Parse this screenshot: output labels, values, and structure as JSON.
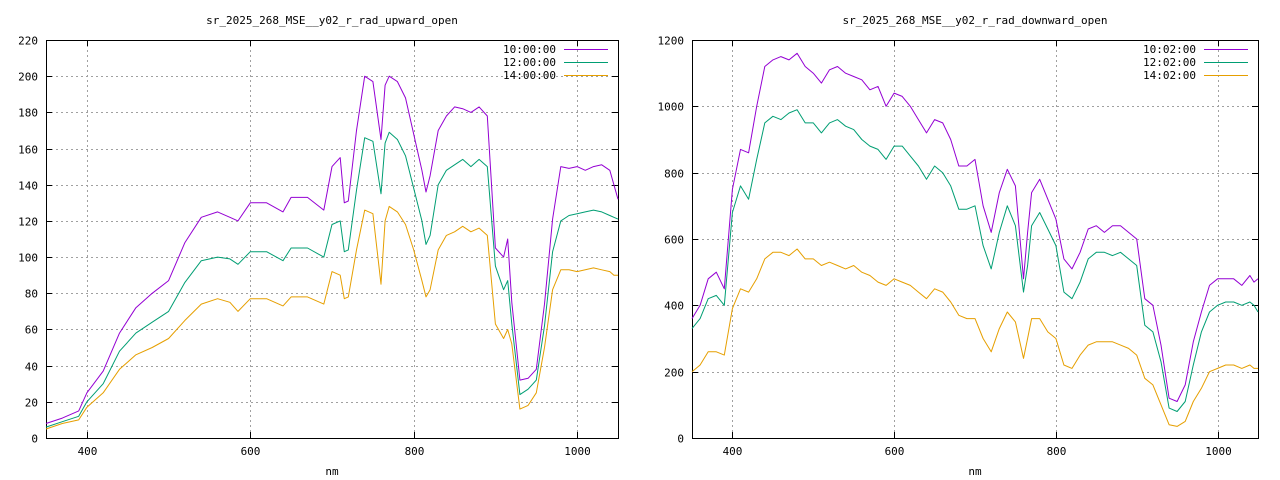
{
  "chart_data": [
    {
      "type": "line",
      "title": "sr_2025_268_MSE__y02_r_rad_upward_open",
      "xlabel": "nm",
      "ylabel": "",
      "xlim": [
        350,
        1050
      ],
      "ylim": [
        0,
        220
      ],
      "xticks": [
        400,
        600,
        800,
        1000
      ],
      "yticks": [
        0,
        20,
        40,
        60,
        80,
        100,
        120,
        140,
        160,
        180,
        200,
        220
      ],
      "grid": true,
      "legend_position": "top-right",
      "series": [
        {
          "name": "10:00:00",
          "color": "#9400d3",
          "x": [
            350,
            370,
            390,
            400,
            420,
            440,
            460,
            480,
            500,
            520,
            540,
            560,
            575,
            585,
            600,
            620,
            640,
            650,
            670,
            690,
            700,
            710,
            715,
            720,
            730,
            740,
            750,
            760,
            765,
            770,
            780,
            790,
            800,
            810,
            815,
            820,
            830,
            840,
            850,
            860,
            870,
            880,
            890,
            900,
            910,
            915,
            920,
            930,
            940,
            950,
            960,
            970,
            980,
            990,
            1000,
            1010,
            1020,
            1030,
            1040,
            1045,
            1050
          ],
          "y": [
            8,
            11,
            15,
            25,
            37,
            58,
            72,
            80,
            87,
            108,
            122,
            125,
            122,
            120,
            130,
            130,
            125,
            133,
            133,
            126,
            150,
            155,
            130,
            131,
            170,
            200,
            197,
            165,
            195,
            200,
            197,
            188,
            168,
            148,
            136,
            145,
            170,
            178,
            183,
            182,
            180,
            183,
            178,
            105,
            100,
            110,
            75,
            32,
            33,
            38,
            74,
            121,
            150,
            149,
            150,
            148,
            150,
            151,
            148,
            140,
            132
          ]
        },
        {
          "name": "12:00:00",
          "color": "#009e73",
          "x": [
            350,
            370,
            390,
            400,
            420,
            440,
            460,
            480,
            500,
            520,
            540,
            560,
            575,
            585,
            600,
            620,
            640,
            650,
            670,
            690,
            700,
            710,
            715,
            720,
            730,
            740,
            750,
            760,
            765,
            770,
            780,
            790,
            800,
            810,
            815,
            820,
            830,
            840,
            850,
            860,
            870,
            880,
            890,
            900,
            910,
            915,
            920,
            930,
            940,
            950,
            960,
            970,
            980,
            990,
            1000,
            1010,
            1020,
            1030,
            1040,
            1045,
            1050
          ],
          "y": [
            6,
            9,
            12,
            20,
            30,
            48,
            58,
            64,
            70,
            86,
            98,
            100,
            99,
            96,
            103,
            103,
            98,
            105,
            105,
            100,
            118,
            120,
            103,
            104,
            137,
            166,
            164,
            135,
            163,
            169,
            165,
            156,
            138,
            120,
            107,
            112,
            140,
            148,
            151,
            154,
            150,
            154,
            150,
            95,
            82,
            87,
            63,
            24,
            27,
            32,
            62,
            103,
            120,
            123,
            124,
            125,
            126,
            125,
            123,
            122,
            121
          ]
        },
        {
          "name": "14:00:00",
          "color": "#e69f00",
          "x": [
            350,
            370,
            390,
            400,
            420,
            440,
            460,
            480,
            500,
            520,
            540,
            560,
            575,
            585,
            600,
            620,
            640,
            650,
            670,
            690,
            700,
            710,
            715,
            720,
            730,
            740,
            750,
            760,
            765,
            770,
            780,
            790,
            800,
            810,
            815,
            820,
            830,
            840,
            850,
            860,
            870,
            880,
            890,
            900,
            910,
            915,
            920,
            930,
            940,
            950,
            960,
            970,
            980,
            990,
            1000,
            1010,
            1020,
            1030,
            1040,
            1045,
            1050
          ],
          "y": [
            5,
            8,
            10,
            17,
            25,
            38,
            46,
            50,
            55,
            65,
            74,
            77,
            75,
            70,
            77,
            77,
            73,
            78,
            78,
            74,
            92,
            90,
            77,
            78,
            104,
            126,
            124,
            85,
            120,
            128,
            125,
            118,
            104,
            87,
            78,
            82,
            104,
            112,
            114,
            117,
            114,
            116,
            112,
            63,
            55,
            60,
            52,
            16,
            18,
            25,
            50,
            82,
            93,
            93,
            92,
            93,
            94,
            93,
            92,
            90,
            90
          ]
        }
      ]
    },
    {
      "type": "line",
      "title": "sr_2025_268_MSE__y02_r_rad_downward_open",
      "xlabel": "nm",
      "ylabel": "",
      "xlim": [
        350,
        1050
      ],
      "ylim": [
        0,
        1200
      ],
      "xticks": [
        400,
        600,
        800,
        1000
      ],
      "yticks": [
        0,
        200,
        400,
        600,
        800,
        1000,
        1200
      ],
      "grid": true,
      "legend_position": "top-right",
      "series": [
        {
          "name": "10:02:00",
          "color": "#9400d3",
          "x": [
            350,
            360,
            370,
            380,
            390,
            400,
            410,
            420,
            430,
            440,
            450,
            460,
            470,
            480,
            490,
            500,
            510,
            520,
            530,
            540,
            550,
            560,
            570,
            580,
            590,
            600,
            610,
            620,
            630,
            640,
            650,
            660,
            670,
            680,
            690,
            700,
            710,
            720,
            730,
            740,
            750,
            760,
            765,
            770,
            780,
            790,
            800,
            810,
            820,
            830,
            840,
            850,
            860,
            870,
            880,
            890,
            900,
            910,
            920,
            930,
            940,
            950,
            960,
            970,
            980,
            990,
            1000,
            1010,
            1020,
            1030,
            1040,
            1045,
            1050
          ],
          "y": [
            360,
            400,
            480,
            500,
            450,
            750,
            870,
            860,
            1000,
            1120,
            1140,
            1150,
            1140,
            1160,
            1120,
            1100,
            1070,
            1110,
            1120,
            1100,
            1090,
            1080,
            1050,
            1060,
            1000,
            1040,
            1030,
            1000,
            960,
            920,
            960,
            950,
            900,
            820,
            820,
            840,
            700,
            620,
            740,
            810,
            760,
            480,
            620,
            740,
            780,
            720,
            660,
            540,
            510,
            560,
            630,
            640,
            620,
            640,
            640,
            620,
            600,
            420,
            400,
            280,
            120,
            110,
            160,
            290,
            380,
            460,
            480,
            480,
            480,
            460,
            490,
            470,
            480
          ]
        },
        {
          "name": "12:02:00",
          "color": "#009e73",
          "x": [
            350,
            360,
            370,
            380,
            390,
            400,
            410,
            420,
            430,
            440,
            450,
            460,
            470,
            480,
            490,
            500,
            510,
            520,
            530,
            540,
            550,
            560,
            570,
            580,
            590,
            600,
            610,
            620,
            630,
            640,
            650,
            660,
            670,
            680,
            690,
            700,
            710,
            720,
            730,
            740,
            750,
            760,
            765,
            770,
            780,
            790,
            800,
            810,
            820,
            830,
            840,
            850,
            860,
            870,
            880,
            890,
            900,
            910,
            920,
            930,
            940,
            950,
            960,
            970,
            980,
            990,
            1000,
            1010,
            1020,
            1030,
            1040,
            1045,
            1050
          ],
          "y": [
            330,
            360,
            420,
            430,
            400,
            680,
            760,
            720,
            840,
            950,
            970,
            960,
            980,
            990,
            950,
            950,
            920,
            950,
            960,
            940,
            930,
            900,
            880,
            870,
            840,
            880,
            880,
            850,
            820,
            780,
            820,
            800,
            760,
            690,
            690,
            700,
            580,
            510,
            620,
            700,
            640,
            440,
            520,
            640,
            680,
            630,
            580,
            440,
            420,
            470,
            540,
            560,
            560,
            550,
            560,
            540,
            520,
            340,
            320,
            230,
            90,
            80,
            110,
            220,
            320,
            380,
            400,
            410,
            410,
            400,
            410,
            400,
            380
          ]
        },
        {
          "name": "14:02:00",
          "color": "#e69f00",
          "x": [
            350,
            360,
            370,
            380,
            390,
            400,
            410,
            420,
            430,
            440,
            450,
            460,
            470,
            480,
            490,
            500,
            510,
            520,
            530,
            540,
            550,
            560,
            570,
            580,
            590,
            600,
            610,
            620,
            630,
            640,
            650,
            660,
            670,
            680,
            690,
            700,
            710,
            720,
            730,
            740,
            750,
            760,
            765,
            770,
            780,
            790,
            800,
            810,
            820,
            830,
            840,
            850,
            860,
            870,
            880,
            890,
            900,
            910,
            920,
            930,
            940,
            950,
            960,
            970,
            980,
            990,
            1000,
            1010,
            1020,
            1030,
            1040,
            1045,
            1050
          ],
          "y": [
            200,
            220,
            260,
            260,
            250,
            390,
            450,
            440,
            480,
            540,
            560,
            560,
            550,
            570,
            540,
            540,
            520,
            530,
            520,
            510,
            520,
            500,
            490,
            470,
            460,
            480,
            470,
            460,
            440,
            420,
            450,
            440,
            410,
            370,
            360,
            360,
            300,
            260,
            330,
            380,
            350,
            240,
            300,
            360,
            360,
            320,
            300,
            220,
            210,
            250,
            280,
            290,
            290,
            290,
            280,
            270,
            250,
            180,
            160,
            100,
            40,
            35,
            50,
            110,
            150,
            200,
            210,
            220,
            220,
            210,
            220,
            210,
            210
          ]
        }
      ]
    }
  ]
}
